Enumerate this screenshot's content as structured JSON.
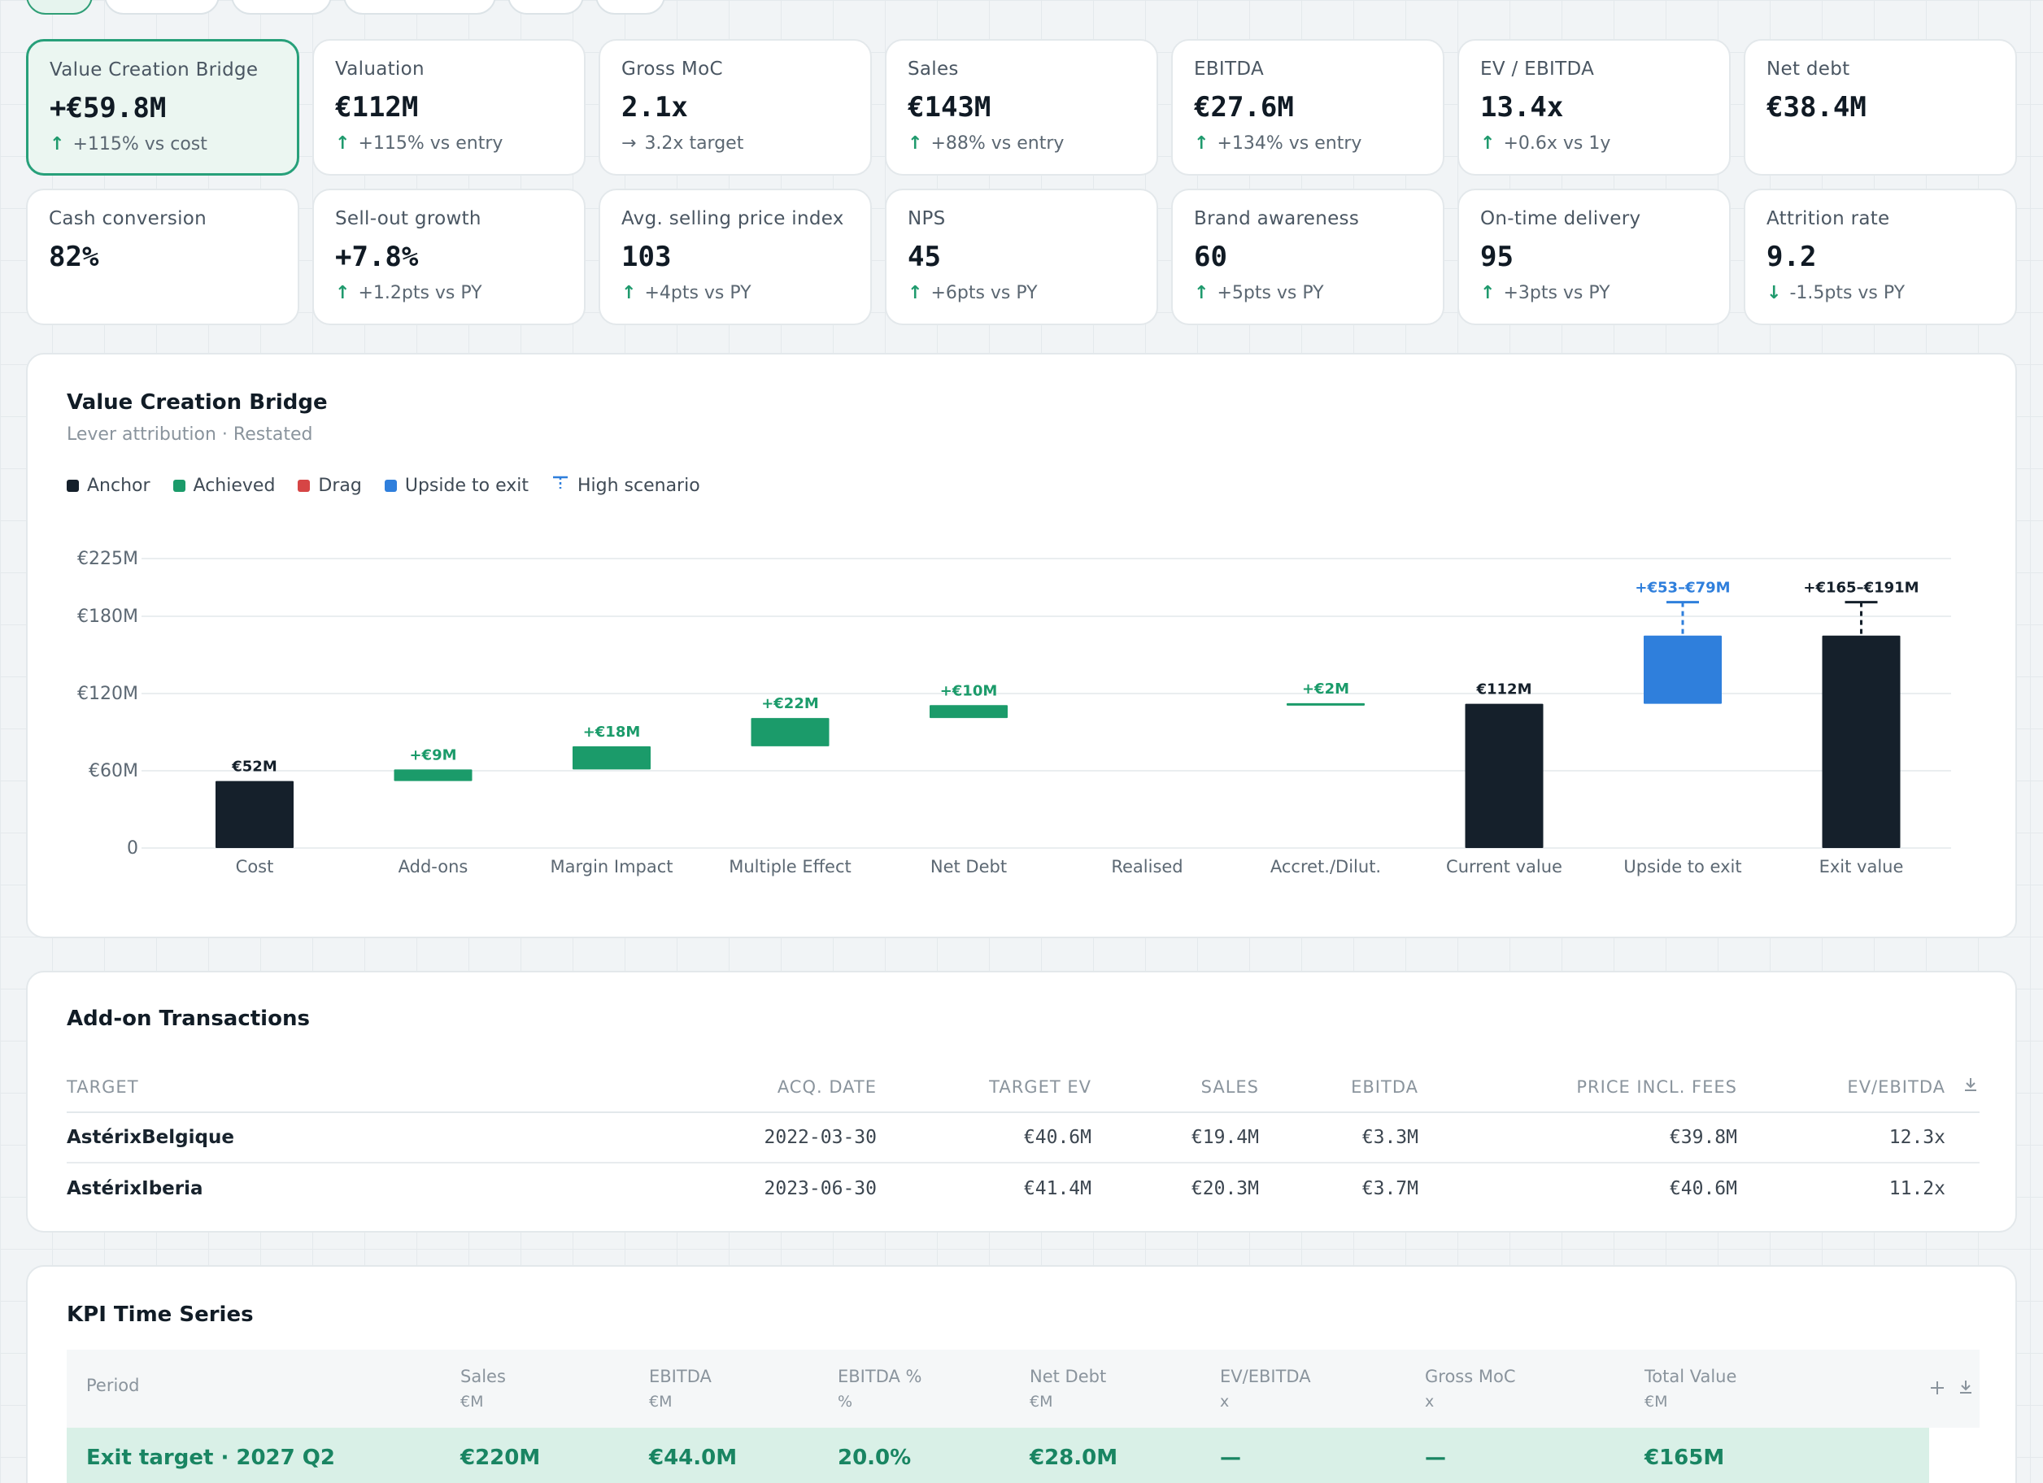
{
  "kpis": [
    {
      "label": "Value Creation Bridge",
      "value": "+€59.8M",
      "delta": "+115% vs cost",
      "dir": "up",
      "selected": true
    },
    {
      "label": "Valuation",
      "value": "€112M",
      "delta": "+115% vs entry",
      "dir": "up"
    },
    {
      "label": "Gross MoC",
      "value": "2.1x",
      "delta": "3.2x target",
      "dir": "right"
    },
    {
      "label": "Sales",
      "value": "€143M",
      "delta": "+88% vs entry",
      "dir": "up"
    },
    {
      "label": "EBITDA",
      "value": "€27.6M",
      "delta": "+134% vs entry",
      "dir": "up"
    },
    {
      "label": "EV / EBITDA",
      "value": "13.4x",
      "delta": "+0.6x vs 1y",
      "dir": "up"
    },
    {
      "label": "Net debt",
      "value": "€38.4M",
      "delta": "",
      "dir": ""
    },
    {
      "label": "Cash conversion",
      "value": "82%",
      "delta": "",
      "dir": ""
    },
    {
      "label": "Sell-out growth",
      "value": "+7.8%",
      "delta": "+1.2pts vs PY",
      "dir": "up"
    },
    {
      "label": "Avg. selling price index",
      "value": "103",
      "delta": "+4pts vs PY",
      "dir": "up"
    },
    {
      "label": "NPS",
      "value": "45",
      "delta": "+6pts vs PY",
      "dir": "up"
    },
    {
      "label": "Brand awareness",
      "value": "60",
      "delta": "+5pts vs PY",
      "dir": "up"
    },
    {
      "label": "On-time delivery",
      "value": "95",
      "delta": "+3pts vs PY",
      "dir": "up"
    },
    {
      "label": "Attrition rate",
      "value": "9.2",
      "delta": "-1.5pts vs PY",
      "dir": "down"
    }
  ],
  "bridge": {
    "title": "Value Creation Bridge",
    "subtitle": "Lever attribution · Restated",
    "legend": [
      {
        "label": "Anchor",
        "color": "#15202b",
        "icon": "square"
      },
      {
        "label": "Achieved",
        "color": "#1b9b6a",
        "icon": "square"
      },
      {
        "label": "Drag",
        "color": "#d64545",
        "icon": "square"
      },
      {
        "label": "Upside to exit",
        "color": "#2f7fdc",
        "icon": "square"
      },
      {
        "label": "High scenario",
        "color": "#2f7fdc",
        "icon": "high-scenario-icon"
      }
    ]
  },
  "chart_data": {
    "type": "bar",
    "subtype": "waterfall",
    "title": "Value Creation Bridge",
    "subtitle": "Lever attribution · Restated",
    "categories": [
      "Cost",
      "Add-ons",
      "Margin Impact",
      "Multiple Effect",
      "Net Debt",
      "Realised",
      "Accret./Dilut.",
      "Current value",
      "Upside to exit",
      "Exit value"
    ],
    "y_ticks": [
      0,
      60,
      120,
      180,
      225
    ],
    "y_tick_labels": [
      "0",
      "€60M",
      "€120M",
      "€180M",
      "€225M"
    ],
    "ylim": [
      0,
      225
    ],
    "grid": true,
    "legend_position": "top-left",
    "bars": [
      {
        "category": "Cost",
        "kind": "anchor",
        "start": 0,
        "end": 52,
        "label": "€52M"
      },
      {
        "category": "Add-ons",
        "kind": "achieved",
        "start": 52,
        "end": 61,
        "label": "+€9M"
      },
      {
        "category": "Margin Impact",
        "kind": "achieved",
        "start": 61,
        "end": 79,
        "label": "+€18M"
      },
      {
        "category": "Multiple Effect",
        "kind": "achieved",
        "start": 79,
        "end": 101,
        "label": "+€22M"
      },
      {
        "category": "Net Debt",
        "kind": "achieved",
        "start": 101,
        "end": 111,
        "label": "+€10M"
      },
      {
        "category": "Realised",
        "kind": "none",
        "start": 111,
        "end": 111,
        "label": ""
      },
      {
        "category": "Accret./Dilut.",
        "kind": "achieved",
        "start": 111,
        "end": 112.5,
        "label": "+€2M"
      },
      {
        "category": "Current value",
        "kind": "anchor",
        "start": 0,
        "end": 112,
        "label": "€112M"
      },
      {
        "category": "Upside to exit",
        "kind": "upside",
        "start": 112,
        "end": 165,
        "high": 191,
        "label": "+€53–€79M"
      },
      {
        "category": "Exit value",
        "kind": "anchor",
        "start": 0,
        "end": 165,
        "high": 191,
        "label": "+€165–€191M"
      }
    ]
  },
  "addons": {
    "title": "Add-on Transactions",
    "columns": [
      "TARGET",
      "ACQ. DATE",
      "TARGET EV",
      "SALES",
      "EBITDA",
      "PRICE INCL. FEES",
      "EV/EBITDA"
    ],
    "rows": [
      [
        "AstérixBelgique",
        "2022-03-30",
        "€40.6M",
        "€19.4M",
        "€3.3M",
        "€39.8M",
        "12.3x"
      ],
      [
        "AstérixIberia",
        "2023-06-30",
        "€41.4M",
        "€20.3M",
        "€3.7M",
        "€40.6M",
        "11.2x"
      ]
    ]
  },
  "kpi_series": {
    "title": "KPI Time Series",
    "columns": [
      {
        "name": "Period",
        "unit": ""
      },
      {
        "name": "Sales",
        "unit": "€M"
      },
      {
        "name": "EBITDA",
        "unit": "€M"
      },
      {
        "name": "EBITDA %",
        "unit": "%"
      },
      {
        "name": "Net Debt",
        "unit": "€M"
      },
      {
        "name": "EV/EBITDA",
        "unit": "x"
      },
      {
        "name": "Gross MoC",
        "unit": "x"
      },
      {
        "name": "Total Value",
        "unit": "€M"
      }
    ],
    "rows": [
      [
        "Exit target · 2027 Q2",
        "€220M",
        "€44.0M",
        "20.0%",
        "€28.0M",
        "—",
        "—",
        "€165M"
      ]
    ]
  },
  "colors": {
    "anchor": "#15202b",
    "achieved": "#1b9b6a",
    "drag": "#d64545",
    "upside": "#2f7fdc",
    "accent": "#27a07a"
  }
}
